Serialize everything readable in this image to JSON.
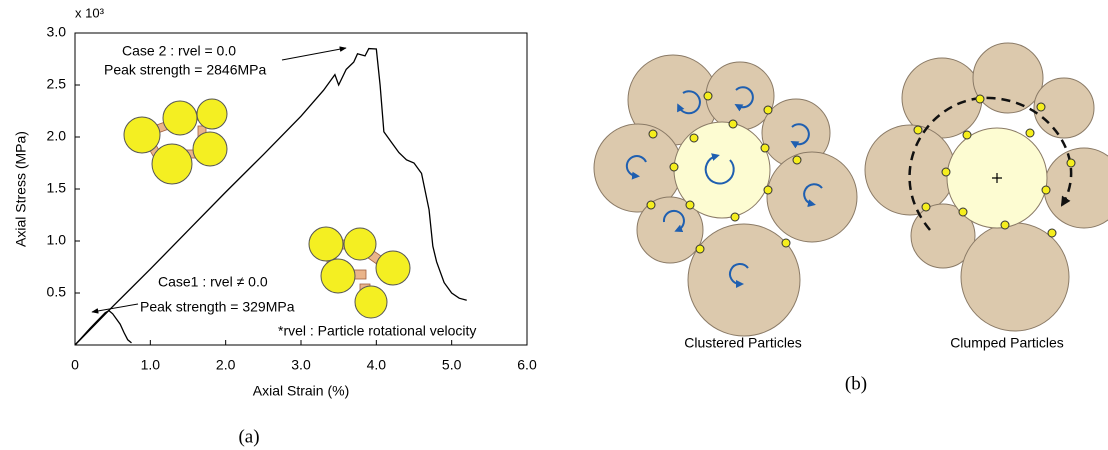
{
  "chart_data": {
    "type": "line",
    "y_multiplier": "x 10³",
    "x_label": "Axial Strain (%)",
    "y_label": "Axial Stress (MPa)",
    "annotations": [
      "Case 2 : rvel = 0.0",
      "Peak strength = 2846MPa",
      "Case1 : rvel ≠ 0.0",
      "Peak strength = 329MPa",
      "*rvel : Particle rotational velocity"
    ],
    "xlim": [
      0,
      6
    ],
    "ylim": [
      0,
      3
    ],
    "xticks": [
      0,
      {
        "value": 1,
        "label": "1.0"
      },
      {
        "value": 2,
        "label": "2.0"
      },
      {
        "value": 3,
        "label": "3.0"
      },
      {
        "value": 4,
        "label": "4.0"
      },
      {
        "value": 5,
        "label": "5.0"
      },
      {
        "value": 6,
        "label": "6.0"
      }
    ],
    "yticks": [
      0.5,
      {
        "value": 1,
        "label": "1.0"
      },
      1.5,
      {
        "value": 2,
        "label": "2.0"
      },
      2.5,
      {
        "value": 3,
        "label": "3.0"
      }
    ],
    "series": [
      {
        "color": "#000000",
        "x": [
          0,
          0.5,
          1,
          1.5,
          2,
          2.5,
          3,
          3.3,
          3.45,
          3.5,
          3.6,
          3.7,
          3.75,
          3.85,
          3.9,
          4.0,
          4.05,
          4.1,
          4.2,
          4.3,
          4.4,
          4.5,
          4.6,
          4.7,
          4.75,
          4.8,
          4.9,
          5.0,
          5.1,
          5.2
        ],
        "values": [
          0,
          0.37,
          0.73,
          1.1,
          1.47,
          1.83,
          2.2,
          2.45,
          2.6,
          2.5,
          2.65,
          2.72,
          2.8,
          2.78,
          2.85,
          2.846,
          2.5,
          2.05,
          1.95,
          1.85,
          1.78,
          1.75,
          1.65,
          1.3,
          0.95,
          0.8,
          0.6,
          0.5,
          0.45,
          0.43
        ]
      },
      {
        "color": "#000000",
        "x": [
          0,
          0.2,
          0.4,
          0.45,
          0.5,
          0.55,
          0.6,
          0.65,
          0.7,
          0.75
        ],
        "values": [
          0,
          0.16,
          0.31,
          0.33,
          0.3,
          0.25,
          0.2,
          0.12,
          0.05,
          0.02
        ]
      }
    ]
  },
  "panel_a_label": "(a)",
  "panel_b": {
    "captions": [
      "Clustered Particles",
      "Clumped Particles"
    ],
    "label": "(b)"
  }
}
